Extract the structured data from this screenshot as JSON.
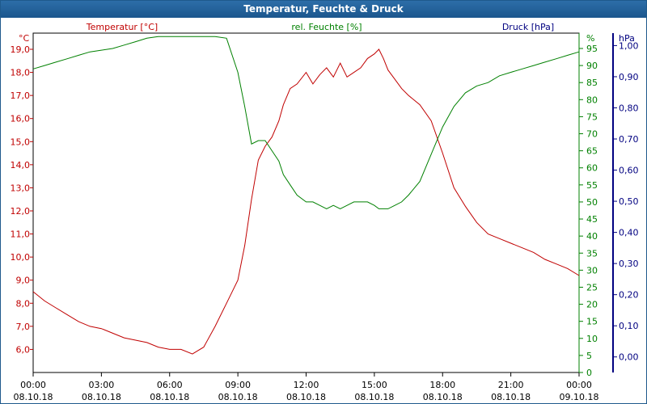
{
  "window": {
    "title": "Temperatur, Feuchte & Druck"
  },
  "chart_data": {
    "type": "line",
    "title": "Temperatur, Feuchte & Druck",
    "grid": true,
    "axes": {
      "temperature": {
        "label": "Temperatur [°C]",
        "unit": "°C",
        "range": [
          5.0,
          19.7
        ],
        "ticks": [
          "6,0",
          "7,0",
          "8,0",
          "9,0",
          "10,0",
          "11,0",
          "12,0",
          "13,0",
          "14,0",
          "15,0",
          "16,0",
          "17,0",
          "18,0",
          "19,0"
        ],
        "tick_values": [
          6,
          7,
          8,
          9,
          10,
          11,
          12,
          13,
          14,
          15,
          16,
          17,
          18,
          19
        ],
        "color": "#c00000"
      },
      "humidity": {
        "label": "rel. Feuchte [%]",
        "unit": "%",
        "range": [
          0,
          99.5
        ],
        "ticks": [
          "0",
          "5",
          "10",
          "15",
          "20",
          "25",
          "30",
          "35",
          "40",
          "45",
          "50",
          "55",
          "60",
          "65",
          "70",
          "75",
          "80",
          "85",
          "90",
          "95"
        ],
        "tick_values": [
          0,
          5,
          10,
          15,
          20,
          25,
          30,
          35,
          40,
          45,
          50,
          55,
          60,
          65,
          70,
          75,
          80,
          85,
          90,
          95
        ],
        "color": "#008000"
      },
      "pressure": {
        "label": "Druck [hPa]",
        "unit": "hPa",
        "range": [
          -0.05,
          1.04
        ],
        "ticks": [
          "0,00",
          "0,10",
          "0,20",
          "0,30",
          "0,40",
          "0,50",
          "0,60",
          "0,70",
          "0,80",
          "0,90",
          "1,00"
        ],
        "tick_values": [
          0,
          0.1,
          0.2,
          0.3,
          0.4,
          0.5,
          0.6,
          0.7,
          0.8,
          0.9,
          1.0
        ],
        "color": "#000080"
      },
      "time": {
        "ticks": [
          [
            "00:00",
            "08.10.18"
          ],
          [
            "03:00",
            "08.10.18"
          ],
          [
            "06:00",
            "08.10.18"
          ],
          [
            "09:00",
            "08.10.18"
          ],
          [
            "12:00",
            "08.10.18"
          ],
          [
            "15:00",
            "08.10.18"
          ],
          [
            "18:00",
            "08.10.18"
          ],
          [
            "21:00",
            "08.10.18"
          ],
          [
            "00:00",
            "09.10.18"
          ]
        ],
        "range_hours": [
          0,
          24
        ]
      }
    },
    "series": [
      {
        "name": "Temperatur [°C]",
        "axis": "temperature",
        "color": "#c00000",
        "x": [
          0,
          0.5,
          1,
          1.5,
          2,
          2.5,
          3,
          3.5,
          4,
          4.5,
          5,
          5.5,
          6,
          6.5,
          7,
          7.5,
          8,
          8.5,
          9,
          9.3,
          9.6,
          9.9,
          10.2,
          10.5,
          10.8,
          11,
          11.3,
          11.6,
          12,
          12.3,
          12.6,
          12.9,
          13.2,
          13.5,
          13.8,
          14.1,
          14.4,
          14.7,
          15,
          15.2,
          15.4,
          15.6,
          15.9,
          16.2,
          16.5,
          17,
          17.5,
          18,
          18.5,
          19,
          19.5,
          20,
          20.5,
          21,
          21.5,
          22,
          22.5,
          23,
          23.5,
          24
        ],
        "values": [
          8.5,
          8.1,
          7.8,
          7.5,
          7.2,
          7.0,
          6.9,
          6.7,
          6.5,
          6.4,
          6.3,
          6.1,
          6.0,
          6.0,
          5.8,
          6.1,
          7.0,
          8.0,
          9.0,
          10.5,
          12.5,
          14.2,
          14.8,
          15.2,
          15.9,
          16.6,
          17.3,
          17.5,
          18.0,
          17.5,
          17.9,
          18.2,
          17.8,
          18.4,
          17.8,
          18.0,
          18.2,
          18.6,
          18.8,
          19.0,
          18.6,
          18.1,
          17.7,
          17.3,
          17.0,
          16.6,
          15.9,
          14.5,
          13.0,
          12.2,
          11.5,
          11.0,
          10.8,
          10.6,
          10.4,
          10.2,
          9.9,
          9.7,
          9.5,
          9.2
        ]
      },
      {
        "name": "rel. Feuchte [%]",
        "axis": "humidity",
        "color": "#008000",
        "x": [
          0,
          0.5,
          1,
          1.5,
          2,
          2.5,
          3,
          3.5,
          4,
          4.5,
          5,
          5.5,
          6,
          6.5,
          7,
          7.5,
          8,
          8.5,
          9,
          9.3,
          9.6,
          9.9,
          10.2,
          10.5,
          10.8,
          11,
          11.3,
          11.6,
          12,
          12.3,
          12.6,
          12.9,
          13.2,
          13.5,
          13.8,
          14.1,
          14.4,
          14.7,
          15,
          15.2,
          15.4,
          15.6,
          15.9,
          16.2,
          16.5,
          17,
          17.5,
          18,
          18.5,
          19,
          19.5,
          20,
          20.5,
          21,
          21.5,
          22,
          22.5,
          23,
          23.5,
          24
        ],
        "values": [
          89,
          90,
          91,
          92,
          93,
          94,
          94.5,
          95,
          96,
          97,
          98,
          98.5,
          98.5,
          98.5,
          98.5,
          98.5,
          98.5,
          98,
          88,
          78,
          67,
          68,
          68,
          65,
          62,
          58,
          55,
          52,
          50,
          50,
          49,
          48,
          49,
          48,
          49,
          50,
          50,
          50,
          49,
          48,
          48,
          48,
          49,
          50,
          52,
          56,
          64,
          72,
          78,
          82,
          84,
          85,
          87,
          88,
          89,
          90,
          91,
          92,
          93,
          94
        ]
      },
      {
        "name": "Druck [hPa]",
        "axis": "pressure",
        "color": "#000080",
        "x": [],
        "values": []
      }
    ]
  }
}
